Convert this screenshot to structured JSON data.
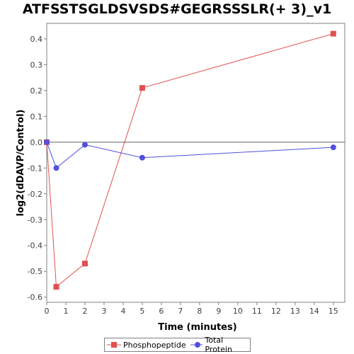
{
  "chart_data": {
    "type": "line",
    "title": "ATFSSTSGLDSVSDS#GEGRSSSLR(+ 3)_v1",
    "xlabel": "Time (minutes)",
    "ylabel": "log2(dDAVP/Control)",
    "xlim": [
      0,
      15.6
    ],
    "ylim": [
      -0.62,
      0.46
    ],
    "xticks": [
      0,
      1,
      2,
      3,
      4,
      5,
      6,
      7,
      8,
      9,
      10,
      11,
      12,
      13,
      14,
      15
    ],
    "yticks": [
      -0.6,
      -0.5,
      -0.4,
      -0.3,
      -0.2,
      -0.1,
      0.0,
      0.1,
      0.2,
      0.3,
      0.4
    ],
    "ytick_labels": [
      "-0.6",
      "-0.5",
      "-0.4",
      "-0.3",
      "-0.2",
      "-0.1",
      "0.0",
      "0.1",
      "0.2",
      "0.3",
      "0.4"
    ],
    "zero_line": true,
    "grid": false,
    "legend_position": "bottom",
    "series": [
      {
        "name": "Phosphopeptide",
        "color": "#e05050",
        "marker": "square",
        "x": [
          0,
          0.5,
          2,
          5,
          15
        ],
        "y": [
          0.0,
          -0.56,
          -0.47,
          0.21,
          0.42
        ]
      },
      {
        "name": "Total Protein",
        "color": "#5050e0",
        "marker": "circle",
        "x": [
          0,
          0.5,
          2,
          5,
          15
        ],
        "y": [
          0.0,
          -0.1,
          -0.01,
          -0.06,
          -0.02
        ]
      }
    ]
  }
}
